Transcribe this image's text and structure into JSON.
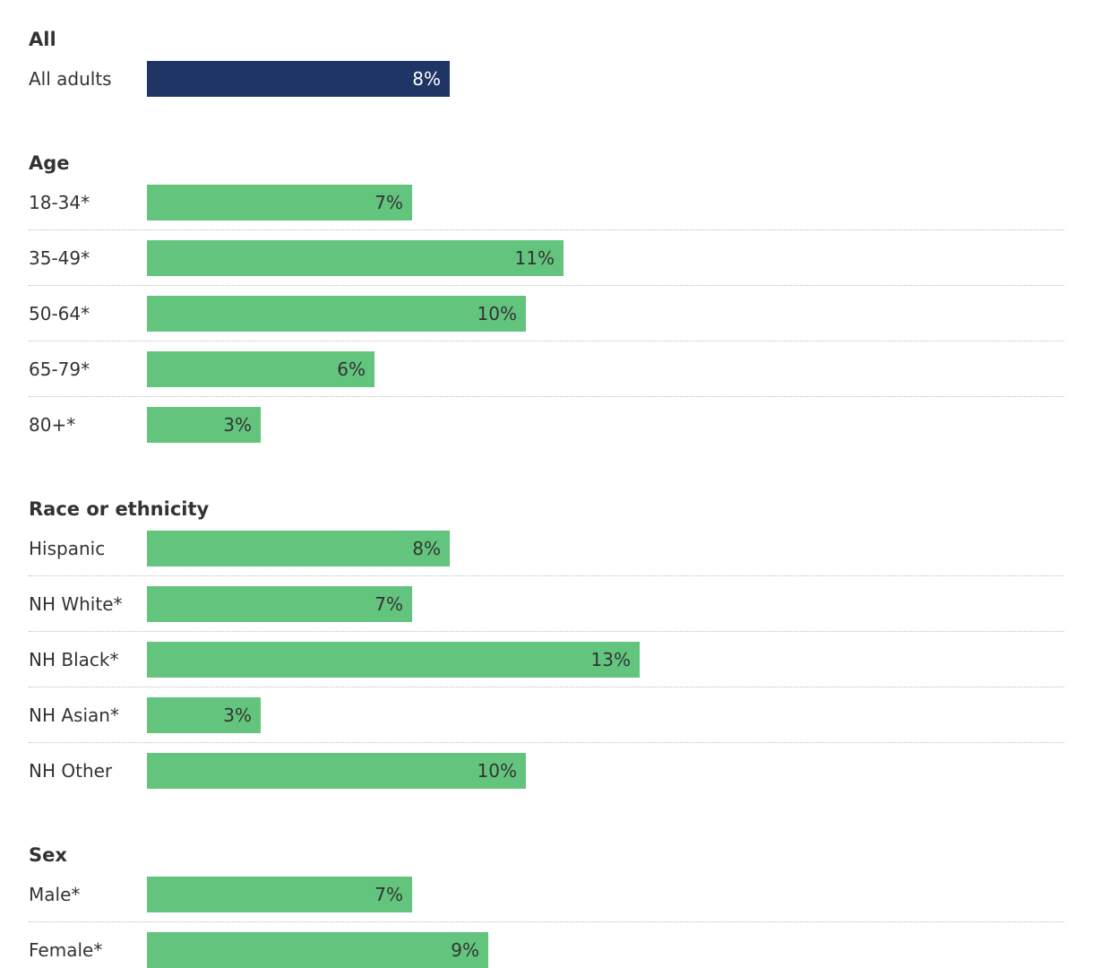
{
  "colors": {
    "overall_bar": "#1f3566",
    "group_bar": "#63c57d",
    "overall_value_text": "#ffffff",
    "group_value_text": "#333333"
  },
  "chart_data": {
    "type": "bar",
    "orientation": "horizontal",
    "value_unit": "%",
    "xlim": [
      0,
      20
    ],
    "grid": false,
    "groups": [
      {
        "title": "All",
        "categories": [
          "All adults"
        ],
        "values": [
          8
        ],
        "labels": [
          "8%"
        ]
      },
      {
        "title": "Age",
        "categories": [
          "18-34*",
          "35-49*",
          "50-64*",
          "65-79*",
          "80+*"
        ],
        "values": [
          7,
          11,
          10,
          6,
          3
        ],
        "labels": [
          "7%",
          "11%",
          "10%",
          "6%",
          "3%"
        ]
      },
      {
        "title": "Race or ethnicity",
        "categories": [
          "Hispanic",
          "NH White*",
          "NH Black*",
          "NH Asian*",
          "NH Other"
        ],
        "values": [
          8,
          7,
          13,
          3,
          10
        ],
        "labels": [
          "8%",
          "7%",
          "13%",
          "3%",
          "10%"
        ]
      },
      {
        "title": "Sex",
        "categories": [
          "Male*",
          "Female*"
        ],
        "values": [
          7,
          9
        ],
        "labels": [
          "7%",
          "9%"
        ]
      }
    ]
  }
}
